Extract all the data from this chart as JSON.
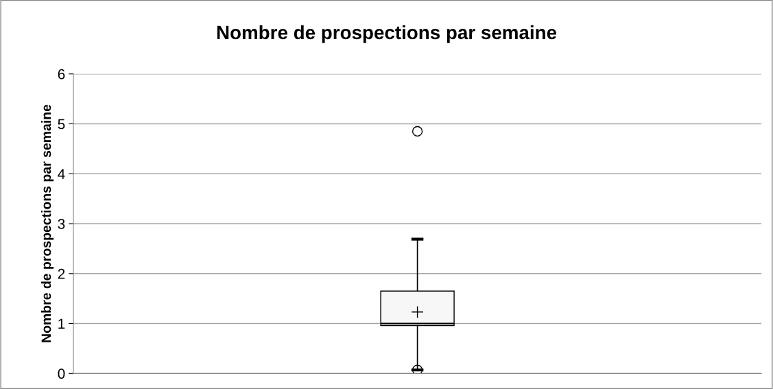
{
  "chart_data": {
    "type": "box",
    "title": "Nombre de prospections par semaine",
    "ylabel": "Nombre de prospections par semaine",
    "categories": [
      null
    ],
    "boxes": [
      {
        "low": 0.07,
        "q1": 0.96,
        "median": 1.0,
        "q3": 1.65,
        "high": 2.69,
        "mean": 1.23,
        "outliers": [
          0.07,
          4.85
        ]
      }
    ],
    "color": "#f7f7f7",
    "ylim": [
      0,
      6
    ],
    "yticks": [
      0,
      1,
      2,
      3,
      4,
      5,
      6
    ],
    "grid": "y",
    "legend": false
  }
}
